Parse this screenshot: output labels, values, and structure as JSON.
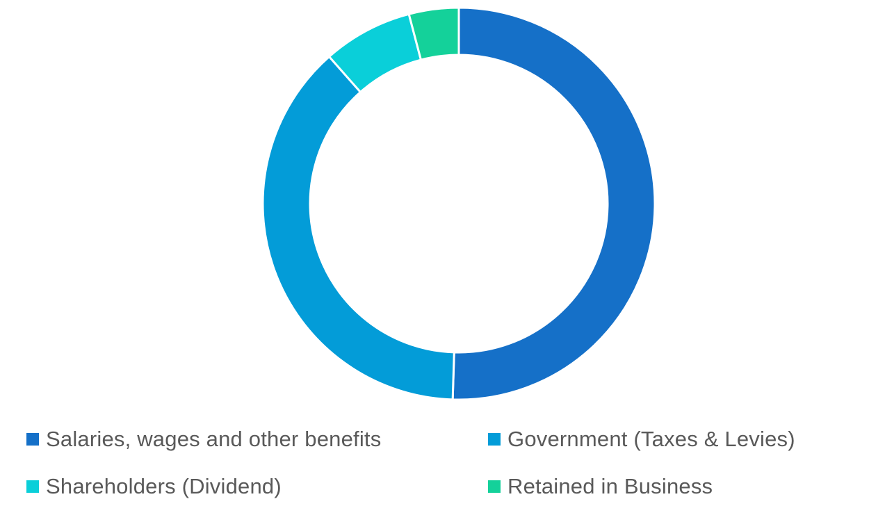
{
  "chart_data": {
    "type": "pie",
    "style": "donut",
    "title": "",
    "categories": [
      "Salaries, wages and other benefits",
      "Government (Taxes & Levies)",
      "Shareholders (Dividend)",
      "Retained in Business"
    ],
    "values": [
      50.5,
      38.0,
      7.4,
      4.1
    ],
    "colors": [
      "#1570C8",
      "#039CD8",
      "#0ACFD9",
      "#14D19A"
    ],
    "legend_position": "bottom",
    "data_labels": false
  }
}
